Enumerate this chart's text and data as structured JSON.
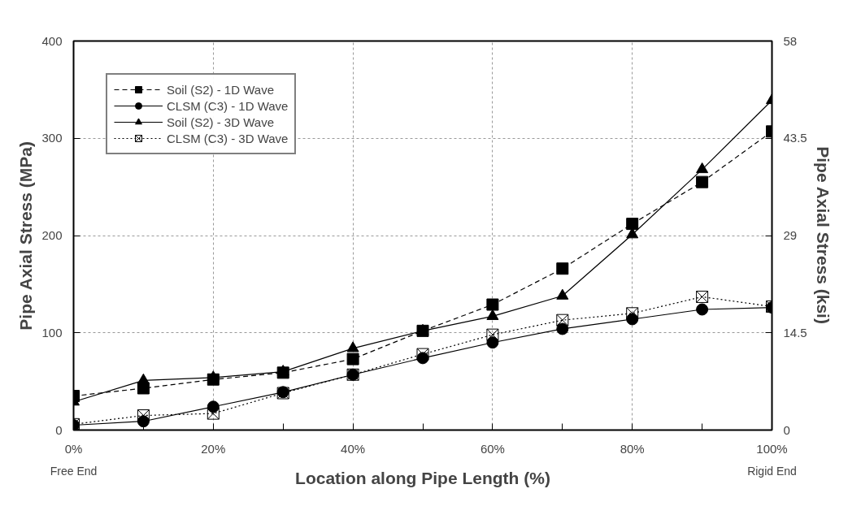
{
  "chart_data": {
    "type": "line",
    "xlabel": "Location along Pipe Length (%)",
    "ylabel": "Pipe Axial Stress (MPa)",
    "y2label": "Pipe Axial Stress (ksi)",
    "x": [
      0,
      10,
      20,
      30,
      40,
      50,
      60,
      70,
      80,
      90,
      100
    ],
    "series": [
      {
        "name": "Soil (S2) - 1D Wave",
        "color": "#000000",
        "marker": "square",
        "line_style": "dashed",
        "values": [
          35,
          43,
          52,
          59,
          73,
          102,
          129,
          166,
          212,
          255,
          307
        ]
      },
      {
        "name": "CLSM (C3) - 1D Wave",
        "color": "#000000",
        "marker": "circle",
        "line_style": "solid",
        "values": [
          5,
          9,
          24,
          39,
          57,
          74,
          90,
          104,
          114,
          124,
          126
        ]
      },
      {
        "name": "Soil (S2) - 3D Wave",
        "color": "#000000",
        "marker": "triangle",
        "line_style": "solid",
        "values": [
          29,
          51,
          54,
          60,
          84,
          102,
          117,
          138,
          201,
          268,
          339
        ]
      },
      {
        "name": "CLSM (C3) - 3D Wave",
        "color": "#000000",
        "marker": "cross",
        "line_style": "dotted",
        "values": [
          6,
          15,
          17,
          38,
          57,
          78,
          98,
          113,
          120,
          137,
          127
        ]
      }
    ],
    "xlim": [
      0,
      100
    ],
    "xticks": [
      {
        "value": 0,
        "label": "0%"
      },
      {
        "value": 10,
        "label": null
      },
      {
        "value": 20,
        "label": "20%"
      },
      {
        "value": 30,
        "label": null
      },
      {
        "value": 40,
        "label": "40%"
      },
      {
        "value": 50,
        "label": null
      },
      {
        "value": 60,
        "label": "60%"
      },
      {
        "value": 70,
        "label": null
      },
      {
        "value": 80,
        "label": "80%"
      },
      {
        "value": 90,
        "label": null
      },
      {
        "value": 100,
        "label": "100%"
      }
    ],
    "ylim": [
      0,
      400
    ],
    "yticks": [
      0,
      100,
      200,
      300,
      400
    ],
    "y2lim": [
      0,
      58
    ],
    "y2ticks": [
      0,
      14.5,
      29,
      43.5,
      58
    ],
    "annotations": [
      "Free End",
      "Rigid End"
    ],
    "grid": true,
    "legend": "top left"
  }
}
